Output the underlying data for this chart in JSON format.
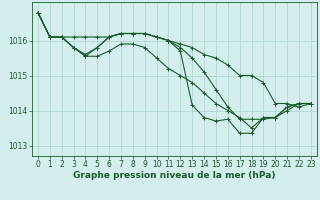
{
  "background_color": "#d4eeed",
  "grid_color": "#b0d8d0",
  "line_color": "#1a5c2a",
  "xlabel": "Graphe pression niveau de la mer (hPa)",
  "xlabel_fontsize": 6.5,
  "tick_fontsize": 5.5,
  "ylim": [
    1012.7,
    1017.1
  ],
  "xlim": [
    -0.5,
    23.5
  ],
  "yticks": [
    1013,
    1014,
    1015,
    1016
  ],
  "xticks": [
    0,
    1,
    2,
    3,
    4,
    5,
    6,
    7,
    8,
    9,
    10,
    11,
    12,
    13,
    14,
    15,
    16,
    17,
    18,
    19,
    20,
    21,
    22,
    23
  ],
  "series": [
    {
      "x": [
        0,
        1,
        2,
        3,
        4,
        5,
        6,
        7,
        8,
        9,
        10,
        11,
        12,
        13,
        14,
        15,
        16,
        17,
        18,
        19,
        20,
        21,
        22,
        23
      ],
      "y": [
        1016.8,
        1016.1,
        1016.1,
        1016.1,
        1016.1,
        1016.1,
        1016.1,
        1016.2,
        1016.2,
        1016.2,
        1016.1,
        1016.0,
        1015.9,
        1015.8,
        1015.6,
        1015.5,
        1015.3,
        1015.0,
        1015.0,
        1014.8,
        1014.2,
        1014.2,
        1014.1,
        1014.2
      ]
    },
    {
      "x": [
        0,
        1,
        2,
        3,
        4,
        5,
        6,
        7,
        8,
        9,
        10,
        11,
        12,
        13,
        14,
        15,
        16,
        17,
        18,
        19,
        20,
        21,
        22,
        23
      ],
      "y": [
        1016.8,
        1016.1,
        1016.1,
        1015.8,
        1015.55,
        1015.8,
        1016.1,
        1016.2,
        1016.2,
        1016.2,
        1016.1,
        1016.0,
        1015.8,
        1015.5,
        1015.1,
        1014.6,
        1014.1,
        1013.75,
        1013.75,
        1013.75,
        1013.8,
        1014.1,
        1014.2,
        1014.2
      ]
    },
    {
      "x": [
        0,
        1,
        2,
        3,
        4,
        5,
        6,
        7,
        8,
        9,
        10,
        11,
        12,
        13,
        14,
        15,
        16,
        17,
        18,
        19,
        20,
        21,
        22,
        23
      ],
      "y": [
        1016.8,
        1016.1,
        1016.1,
        1015.8,
        1015.6,
        1015.8,
        1016.1,
        1016.2,
        1016.2,
        1016.2,
        1016.1,
        1016.0,
        1015.7,
        1014.15,
        1013.8,
        1013.7,
        1013.75,
        1013.35,
        1013.35,
        1013.8,
        1013.8,
        1014.1,
        1014.2,
        1014.2
      ]
    },
    {
      "x": [
        0,
        1,
        2,
        3,
        4,
        5,
        6,
        7,
        8,
        9,
        10,
        11,
        12,
        13,
        14,
        15,
        16,
        17,
        18,
        19,
        20,
        21,
        22,
        23
      ],
      "y": [
        1016.8,
        1016.1,
        1016.1,
        1015.8,
        1015.55,
        1015.55,
        1015.7,
        1015.9,
        1015.9,
        1015.8,
        1015.5,
        1015.2,
        1015.0,
        1014.8,
        1014.5,
        1014.2,
        1014.0,
        1013.8,
        1013.5,
        1013.8,
        1013.8,
        1014.0,
        1014.2,
        1014.2
      ]
    }
  ]
}
